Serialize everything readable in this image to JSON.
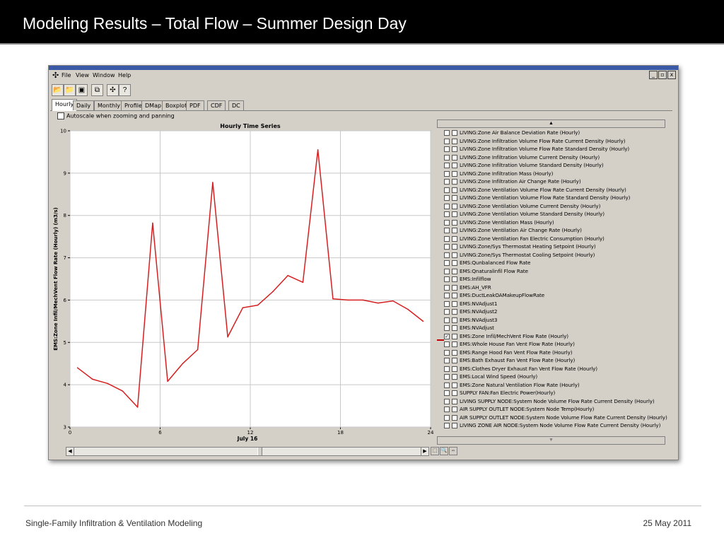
{
  "slide": {
    "title": "Modeling Results – Total Flow – Summer Design Day",
    "footer_left": "Single-Family Infiltration & Ventilation Modeling",
    "footer_right": "25 May 2011"
  },
  "app": {
    "menu": [
      "File",
      "View",
      "Window",
      "Help"
    ],
    "window_controls": [
      "_",
      "▫",
      "x"
    ],
    "tabs": [
      "Hourly",
      "Daily",
      "Monthly",
      "Profile",
      "DMap",
      "Boxplot",
      "PDF",
      "CDF",
      "DC"
    ],
    "active_tab": "Hourly",
    "autoscale_label": "Autoscale when zooming and panning",
    "toolbar_icons": [
      "open-folder-icon",
      "folder-icon",
      "save-icon",
      "copy-icon",
      "app-icon",
      "help-icon"
    ]
  },
  "legend": {
    "items": [
      {
        "label": "LIVING:Zone Air Balance Deviation Rate (Hourly)",
        "checked": false
      },
      {
        "label": "LIVING:Zone Infiltration Volume Flow Rate Current Density (Hourly)",
        "checked": false
      },
      {
        "label": "LIVING:Zone Infiltration Volume Flow Rate Standard Density (Hourly)",
        "checked": false
      },
      {
        "label": "LIVING:Zone Infiltration Volume Current Density (Hourly)",
        "checked": false
      },
      {
        "label": "LIVING:Zone Infiltration Volume Standard Density (Hourly)",
        "checked": false
      },
      {
        "label": "LIVING:Zone Infiltration Mass (Hourly)",
        "checked": false
      },
      {
        "label": "LIVING:Zone Infiltration Air Change Rate (Hourly)",
        "checked": false
      },
      {
        "label": "LIVING:Zone Ventilation Volume Flow Rate Current Density (Hourly)",
        "checked": false
      },
      {
        "label": "LIVING:Zone Ventilation Volume Flow Rate Standard Density (Hourly)",
        "checked": false
      },
      {
        "label": "LIVING:Zone Ventilation Volume Current Density (Hourly)",
        "checked": false
      },
      {
        "label": "LIVING:Zone Ventilation Volume Standard Density (Hourly)",
        "checked": false
      },
      {
        "label": "LIVING:Zone Ventilation Mass (Hourly)",
        "checked": false
      },
      {
        "label": "LIVING:Zone Ventilation Air Change Rate (Hourly)",
        "checked": false
      },
      {
        "label": "LIVING:Zone Ventilation Fan Electric Consumption (Hourly)",
        "checked": false
      },
      {
        "label": "LIVING:Zone/Sys Thermostat Heating Setpoint (Hourly)",
        "checked": false
      },
      {
        "label": "LIVING:Zone/Sys Thermostat Cooling Setpoint (Hourly)",
        "checked": false
      },
      {
        "label": "EMS:Qunbalanced Flow Rate",
        "checked": false
      },
      {
        "label": "EMS:Qnaturalinfil Flow Rate",
        "checked": false
      },
      {
        "label": "EMS:Infilflow",
        "checked": false
      },
      {
        "label": "EMS:AH_VFR",
        "checked": false
      },
      {
        "label": "EMS:DuctLeakOAMakeupFlowRate",
        "checked": false
      },
      {
        "label": "EMS:NVAdjust1",
        "checked": false
      },
      {
        "label": "EMS:NVAdjust2",
        "checked": false
      },
      {
        "label": "EMS:NVAdjust3",
        "checked": false
      },
      {
        "label": "EMS:NVAdjust",
        "checked": false
      },
      {
        "label": "EMS:Zone Infil/MechVent Flow Rate (Hourly)",
        "checked": true
      },
      {
        "label": "EMS:Whole House Fan Vent Flow Rate (Hourly)",
        "checked": false
      },
      {
        "label": "EMS:Range Hood Fan Vent Flow Rate (Hourly)",
        "checked": false
      },
      {
        "label": "EMS:Bath Exhaust Fan Vent Flow Rate (Hourly)",
        "checked": false
      },
      {
        "label": "EMS:Clothes Dryer Exhaust Fan Vent Flow Rate (Hourly)",
        "checked": false
      },
      {
        "label": "EMS:Local Wind Speed (Hourly)",
        "checked": false
      },
      {
        "label": "EMS:Zone Natural Ventilation Flow Rate (Hourly)",
        "checked": false
      },
      {
        "label": "SUPPLY FAN:Fan Electric Power(Hourly)",
        "checked": false
      },
      {
        "label": "LIVING SUPPLY NODE:System Node Volume Flow Rate Current Density (Hourly)",
        "checked": false
      },
      {
        "label": "AIR SUPPLY OUTLET NODE:System Node Temp(Hourly)",
        "checked": false
      },
      {
        "label": "AIR SUPPLY OUTLET NODE:System Node Volume Flow Rate Current Density (Hourly)",
        "checked": false
      },
      {
        "label": "LIVING ZONE AIR NODE:System Node Volume Flow Rate Current Density (Hourly)",
        "checked": false
      }
    ]
  },
  "chart_data": {
    "type": "line",
    "title": "Hourly Time Series",
    "xlabel": "July 16",
    "ylabel": "EMS:Zone Infil/MechVent Flow Rate (Hourly) (m3/s)",
    "xlim": [
      0,
      24
    ],
    "ylim": [
      3,
      10
    ],
    "x_ticks": [
      "0",
      "6",
      "12",
      "18",
      "24"
    ],
    "y_ticks": [
      "3",
      "4",
      "5",
      "6",
      "7",
      "8",
      "9",
      "10"
    ],
    "grid": true,
    "series": [
      {
        "name": "EMS:Zone Infil/MechVent Flow Rate (Hourly)",
        "color": "#d42020",
        "x": [
          0.5,
          1.5,
          2.5,
          3.5,
          4.5,
          5.5,
          6.5,
          7.5,
          8.5,
          9.5,
          10.5,
          11.5,
          12.5,
          13.5,
          14.5,
          15.5,
          16.5,
          17.5,
          18.5,
          19.5,
          20.5,
          21.5,
          22.5,
          23.5
        ],
        "y": [
          4.4,
          4.13,
          4.03,
          3.85,
          3.47,
          7.82,
          4.08,
          4.5,
          4.83,
          8.78,
          5.13,
          5.82,
          5.88,
          6.2,
          6.58,
          6.42,
          9.55,
          6.03,
          6.0,
          6.0,
          5.93,
          5.98,
          5.78,
          5.5
        ]
      }
    ]
  }
}
